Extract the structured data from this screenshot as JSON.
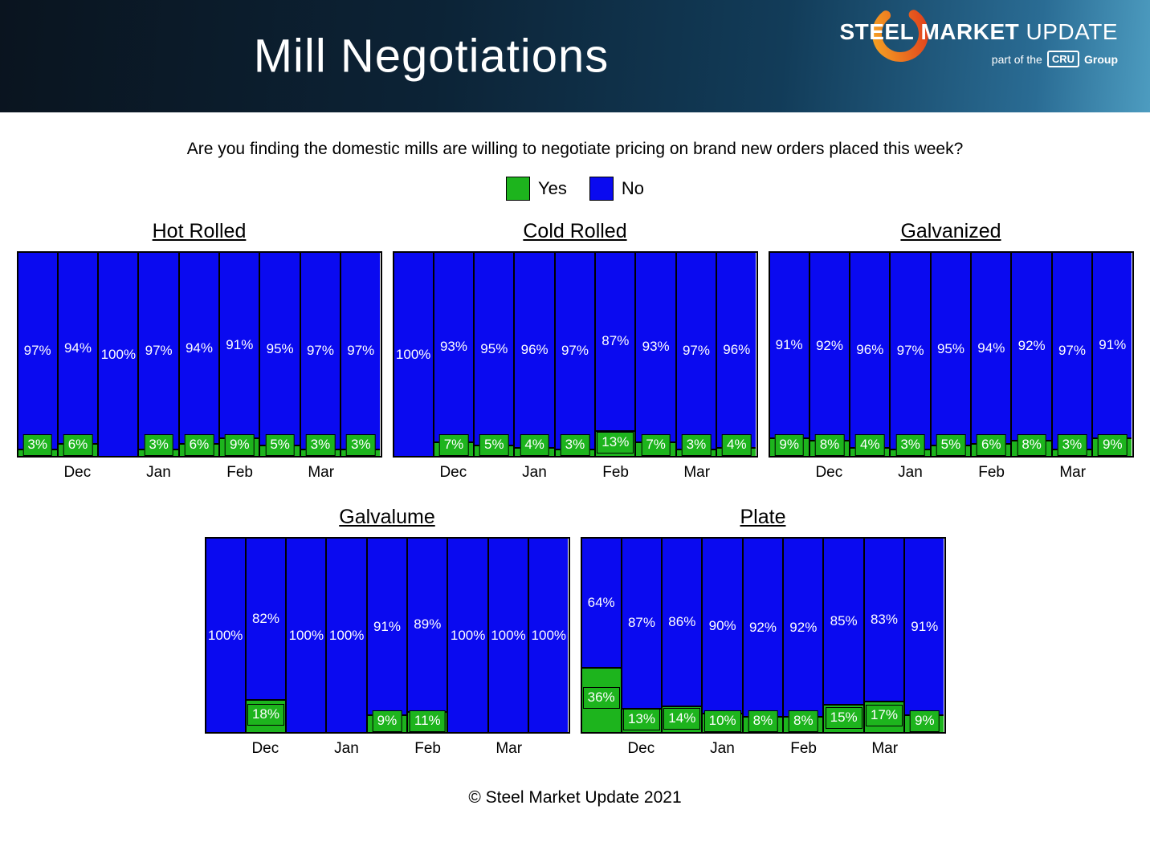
{
  "header": {
    "title": "Mill Negotiations",
    "logo": {
      "word1": "STEEL",
      "word2": "MARKET",
      "word3": "UPDATE",
      "tagline_prefix": "part of the",
      "tagline_cru": "CRU",
      "tagline_suffix": "Group"
    }
  },
  "question": "Are you finding the domestic mills are willing to negotiate pricing on brand new orders placed this week?",
  "legend": [
    {
      "label": "Yes",
      "key": "yes"
    },
    {
      "label": "No",
      "key": "no"
    }
  ],
  "colors": {
    "yes": "#1db41d",
    "no": "#0a0af0"
  },
  "footer": "© Steel Market Update 2021",
  "chart_data": [
    {
      "type": "bar",
      "stacked": true,
      "title": "Hot Rolled",
      "months": [
        "Dec",
        "Jan",
        "Feb",
        "Mar"
      ],
      "ylim": [
        0,
        100
      ],
      "series": [
        {
          "name": "No",
          "values": [
            97,
            94,
            100,
            97,
            94,
            91,
            95,
            97,
            97
          ]
        },
        {
          "name": "Yes",
          "values": [
            3,
            6,
            0,
            3,
            6,
            9,
            5,
            3,
            3
          ]
        }
      ]
    },
    {
      "type": "bar",
      "stacked": true,
      "title": "Cold Rolled",
      "months": [
        "Dec",
        "Jan",
        "Feb",
        "Mar"
      ],
      "ylim": [
        0,
        100
      ],
      "series": [
        {
          "name": "No",
          "values": [
            100,
            93,
            95,
            96,
            97,
            87,
            93,
            97,
            96
          ]
        },
        {
          "name": "Yes",
          "values": [
            0,
            7,
            5,
            4,
            3,
            13,
            7,
            3,
            4
          ]
        }
      ]
    },
    {
      "type": "bar",
      "stacked": true,
      "title": "Galvanized",
      "months": [
        "Dec",
        "Jan",
        "Feb",
        "Mar"
      ],
      "ylim": [
        0,
        100
      ],
      "series": [
        {
          "name": "No",
          "values": [
            91,
            92,
            96,
            97,
            95,
            94,
            92,
            97,
            91
          ]
        },
        {
          "name": "Yes",
          "values": [
            9,
            8,
            4,
            3,
            5,
            6,
            8,
            3,
            9
          ]
        }
      ]
    },
    {
      "type": "bar",
      "stacked": true,
      "title": "Galvalume",
      "months": [
        "Dec",
        "Jan",
        "Feb",
        "Mar"
      ],
      "ylim": [
        0,
        100
      ],
      "series": [
        {
          "name": "No",
          "values": [
            100,
            82,
            100,
            100,
            91,
            89,
            100,
            100,
            100
          ]
        },
        {
          "name": "Yes",
          "values": [
            0,
            18,
            0,
            0,
            9,
            11,
            0,
            0,
            0
          ]
        }
      ]
    },
    {
      "type": "bar",
      "stacked": true,
      "title": "Plate",
      "months": [
        "Dec",
        "Jan",
        "Feb",
        "Mar"
      ],
      "ylim": [
        0,
        100
      ],
      "series": [
        {
          "name": "No",
          "values": [
            64,
            87,
            86,
            90,
            92,
            92,
            85,
            83,
            91
          ]
        },
        {
          "name": "Yes",
          "values": [
            36,
            13,
            14,
            10,
            8,
            8,
            15,
            17,
            9
          ]
        }
      ]
    }
  ]
}
